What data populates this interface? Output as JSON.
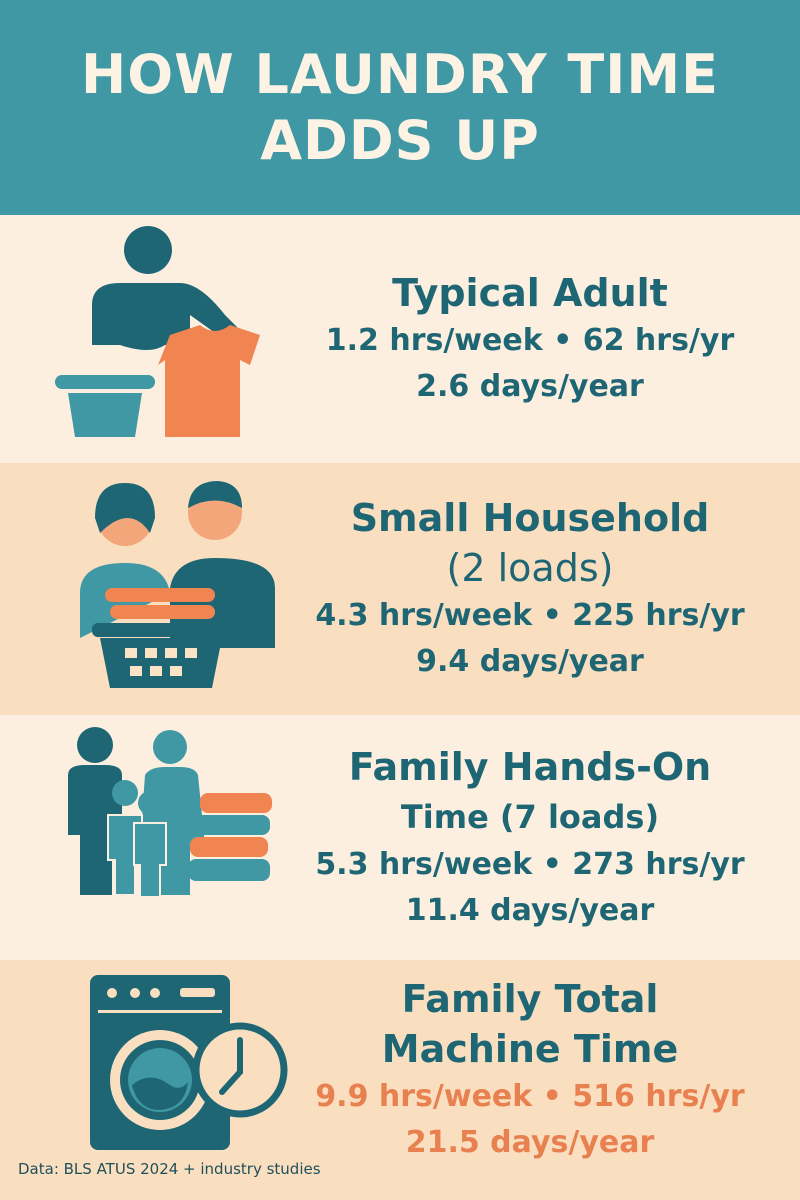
{
  "header": {
    "title_lines": [
      "HOW LAUNDRY TIME",
      "ADDS UP"
    ]
  },
  "sections": [
    {
      "title_lines": [
        "Typical Adult"
      ],
      "stat_lines": [
        "1.2 hrs/week • 62 hrs/yr",
        "2.6 days/year"
      ]
    },
    {
      "title_lines": [
        "Small Household",
        "(2 loads)"
      ],
      "stat_lines": [
        "4.3 hrs/week • 225 hrs/yr",
        "9.4 days/year"
      ]
    },
    {
      "title_lines": [
        "Family Hands-On",
        "Time (7 loads)"
      ],
      "stat_lines": [
        "5.3 hrs/week • 273 hrs/yr",
        "11.4 days/year"
      ]
    },
    {
      "title_lines": [
        "Family Total",
        "Machine Time"
      ],
      "stat_lines": [
        "9.9 hrs/week • 516 hrs/yr",
        "21.5 days/year"
      ]
    }
  ],
  "footer": {
    "source": "Data: BLS ATUS 2024 + industry studies"
  }
}
